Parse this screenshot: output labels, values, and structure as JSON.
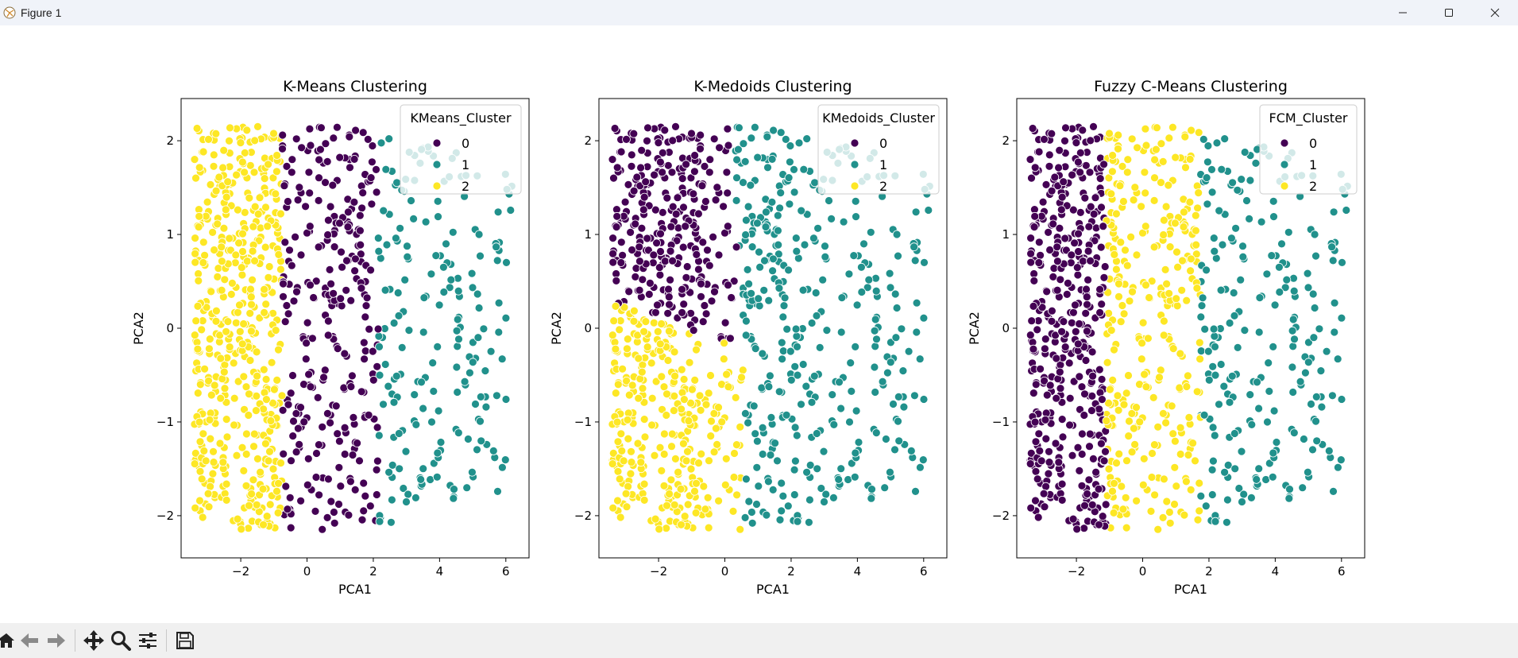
{
  "window": {
    "title": "Figure 1"
  },
  "toolbar": {
    "buttons": [
      "home-icon",
      "back-arrow-icon",
      "forward-arrow-icon",
      "pan-icon",
      "zoom-icon",
      "configure-subplots-icon",
      "save-icon"
    ]
  },
  "colors": {
    "cluster_0": "#440154",
    "cluster_1": "#21918c",
    "cluster_2": "#fde725"
  },
  "chart_data": [
    {
      "type": "scatter",
      "title": "K-Means Clustering",
      "xlabel": "PCA1",
      "ylabel": "PCA2",
      "xlim": [
        -3.8,
        6.7
      ],
      "ylim": [
        -2.45,
        2.45
      ],
      "xticks": [
        -2,
        0,
        2,
        4,
        6
      ],
      "yticks": [
        -2,
        -1,
        0,
        1,
        2
      ],
      "xtick_labels": [
        "−2",
        "0",
        "2",
        "4",
        "6"
      ],
      "ytick_labels": [
        "−2",
        "−1",
        "0",
        "1",
        "2"
      ],
      "legend": {
        "title": "KMeans_Cluster",
        "placement": "top-right",
        "entries": [
          "0",
          "1",
          "2"
        ]
      },
      "series": [
        {
          "name": "0",
          "x_range": [
            -0.75,
            2.2
          ],
          "y_range": [
            -2.0,
            2.1
          ]
        },
        {
          "name": "1",
          "x_range": [
            2.1,
            6.2
          ],
          "y_range": [
            -1.9,
            2.1
          ]
        },
        {
          "name": "2",
          "x_range": [
            -3.4,
            -0.75
          ],
          "y_range": [
            -2.2,
            2.2
          ]
        }
      ]
    },
    {
      "type": "scatter",
      "title": "K-Medoids Clustering",
      "xlabel": "PCA1",
      "ylabel": "PCA2",
      "xlim": [
        -3.8,
        6.7
      ],
      "ylim": [
        -2.45,
        2.45
      ],
      "xticks": [
        -2,
        0,
        2,
        4,
        6
      ],
      "yticks": [
        -2,
        -1,
        0,
        1,
        2
      ],
      "xtick_labels": [
        "−2",
        "0",
        "2",
        "4",
        "6"
      ],
      "ytick_labels": [
        "−2",
        "−1",
        "0",
        "1",
        "2"
      ],
      "legend": {
        "title": "KMedoids_Cluster",
        "placement": "top-right",
        "entries": [
          "0",
          "1",
          "2"
        ]
      },
      "series": [
        {
          "name": "0",
          "x_range": [
            -3.4,
            0.7
          ],
          "y_range": [
            0.0,
            2.2
          ]
        },
        {
          "name": "1",
          "x_range": [
            0.4,
            6.2
          ],
          "y_range": [
            -1.9,
            2.1
          ]
        },
        {
          "name": "2",
          "x_range": [
            -3.4,
            0.5
          ],
          "y_range": [
            -2.2,
            0.5
          ]
        }
      ]
    },
    {
      "type": "scatter",
      "title": "Fuzzy C-Means Clustering",
      "xlabel": "PCA1",
      "ylabel": "PCA2",
      "xlim": [
        -3.8,
        6.7
      ],
      "ylim": [
        -2.45,
        2.45
      ],
      "xticks": [
        -2,
        0,
        2,
        4,
        6
      ],
      "yticks": [
        -2,
        -1,
        0,
        1,
        2
      ],
      "xtick_labels": [
        "−2",
        "0",
        "2",
        "4",
        "6"
      ],
      "ytick_labels": [
        "−2",
        "−1",
        "0",
        "1",
        "2"
      ],
      "legend": {
        "title": "FCM_Cluster",
        "placement": "top-right",
        "entries": [
          "0",
          "1",
          "2"
        ]
      },
      "series": [
        {
          "name": "0",
          "x_range": [
            -3.4,
            -1.1
          ],
          "y_range": [
            -2.2,
            2.2
          ]
        },
        {
          "name": "1",
          "x_range": [
            1.75,
            6.2
          ],
          "y_range": [
            -1.9,
            2.1
          ]
        },
        {
          "name": "2",
          "x_range": [
            -1.1,
            1.75
          ],
          "y_range": [
            -2.2,
            2.1
          ]
        }
      ]
    }
  ]
}
